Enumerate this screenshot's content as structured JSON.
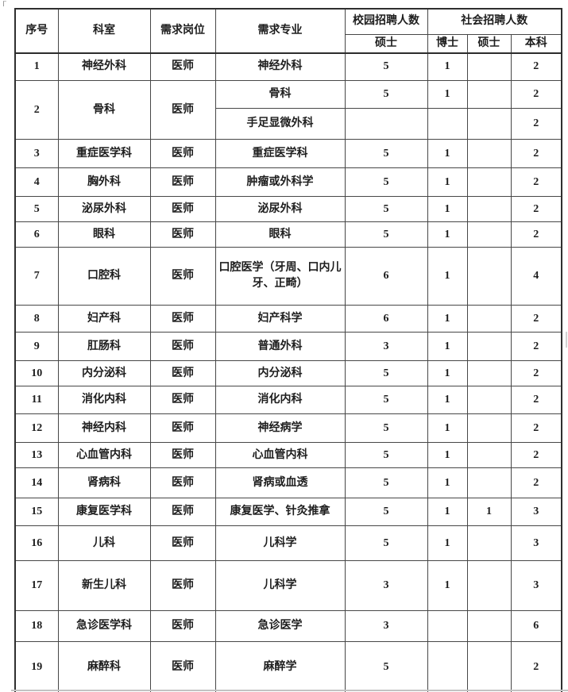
{
  "table": {
    "header": {
      "seq": "序号",
      "department": "科室",
      "position": "需求岗位",
      "major": "需求专业",
      "campus_group": "校园招聘人数",
      "social_group": "社会招聘人数",
      "campus_master": "硕士",
      "social_doctor": "博士",
      "social_master": "硕士",
      "social_bachelor": "本科"
    },
    "rows": [
      {
        "no": "1",
        "dept": "神经外科",
        "post": "医师",
        "majors": [
          {
            "major": "神经外科",
            "campus_master": "5",
            "doctor": "1",
            "master": "",
            "bachelor": "2"
          }
        ]
      },
      {
        "no": "2",
        "dept": "骨科",
        "post": "医师",
        "majors": [
          {
            "major": "骨科",
            "campus_master": "5",
            "doctor": "1",
            "master": "",
            "bachelor": "2"
          },
          {
            "major": "手足显微外科",
            "campus_master": "",
            "doctor": "",
            "master": "",
            "bachelor": "2"
          }
        ]
      },
      {
        "no": "3",
        "dept": "重症医学科",
        "post": "医师",
        "majors": [
          {
            "major": "重症医学科",
            "campus_master": "5",
            "doctor": "1",
            "master": "",
            "bachelor": "2"
          }
        ]
      },
      {
        "no": "4",
        "dept": "胸外科",
        "post": "医师",
        "majors": [
          {
            "major": "肿瘤或外科学",
            "campus_master": "5",
            "doctor": "1",
            "master": "",
            "bachelor": "2"
          }
        ]
      },
      {
        "no": "5",
        "dept": "泌尿外科",
        "post": "医师",
        "majors": [
          {
            "major": "泌尿外科",
            "campus_master": "5",
            "doctor": "1",
            "master": "",
            "bachelor": "2"
          }
        ]
      },
      {
        "no": "6",
        "dept": "眼科",
        "post": "医师",
        "majors": [
          {
            "major": "眼科",
            "campus_master": "5",
            "doctor": "1",
            "master": "",
            "bachelor": "2"
          }
        ]
      },
      {
        "no": "7",
        "dept": "口腔科",
        "post": "医师",
        "majors": [
          {
            "major": "口腔医学（牙周、口内儿牙、正畸）",
            "campus_master": "6",
            "doctor": "1",
            "master": "",
            "bachelor": "4"
          }
        ]
      },
      {
        "no": "8",
        "dept": "妇产科",
        "post": "医师",
        "majors": [
          {
            "major": "妇产科学",
            "campus_master": "6",
            "doctor": "1",
            "master": "",
            "bachelor": "2"
          }
        ]
      },
      {
        "no": "9",
        "dept": "肛肠科",
        "post": "医师",
        "majors": [
          {
            "major": "普通外科",
            "campus_master": "3",
            "doctor": "1",
            "master": "",
            "bachelor": "2"
          }
        ]
      },
      {
        "no": "10",
        "dept": "内分泌科",
        "post": "医师",
        "majors": [
          {
            "major": "内分泌科",
            "campus_master": "5",
            "doctor": "1",
            "master": "",
            "bachelor": "2"
          }
        ]
      },
      {
        "no": "11",
        "dept": "消化内科",
        "post": "医师",
        "majors": [
          {
            "major": "消化内科",
            "campus_master": "5",
            "doctor": "1",
            "master": "",
            "bachelor": "2"
          }
        ]
      },
      {
        "no": "12",
        "dept": "神经内科",
        "post": "医师",
        "majors": [
          {
            "major": "神经病学",
            "campus_master": "5",
            "doctor": "1",
            "master": "",
            "bachelor": "2"
          }
        ]
      },
      {
        "no": "13",
        "dept": "心血管内科",
        "post": "医师",
        "majors": [
          {
            "major": "心血管内科",
            "campus_master": "5",
            "doctor": "1",
            "master": "",
            "bachelor": "2"
          }
        ]
      },
      {
        "no": "14",
        "dept": "肾病科",
        "post": "医师",
        "majors": [
          {
            "major": "肾病或血透",
            "campus_master": "5",
            "doctor": "1",
            "master": "",
            "bachelor": "2"
          }
        ]
      },
      {
        "no": "15",
        "dept": "康复医学科",
        "post": "医师",
        "majors": [
          {
            "major": "康复医学、针灸推拿",
            "campus_master": "5",
            "doctor": "1",
            "master": "1",
            "bachelor": "3"
          }
        ]
      },
      {
        "no": "16",
        "dept": "儿科",
        "post": "医师",
        "majors": [
          {
            "major": "儿科学",
            "campus_master": "5",
            "doctor": "1",
            "master": "",
            "bachelor": "3"
          }
        ]
      },
      {
        "no": "17",
        "dept": "新生儿科",
        "post": "医师",
        "majors": [
          {
            "major": "儿科学",
            "campus_master": "3",
            "doctor": "1",
            "master": "",
            "bachelor": "3"
          }
        ]
      },
      {
        "no": "18",
        "dept": "急诊医学科",
        "post": "医师",
        "majors": [
          {
            "major": "急诊医学",
            "campus_master": "3",
            "doctor": "",
            "master": "",
            "bachelor": "6"
          }
        ]
      },
      {
        "no": "19",
        "dept": "麻醉科",
        "post": "医师",
        "majors": [
          {
            "major": "麻醉学",
            "campus_master": "5",
            "doctor": "",
            "master": "",
            "bachelor": "2"
          }
        ]
      }
    ]
  }
}
